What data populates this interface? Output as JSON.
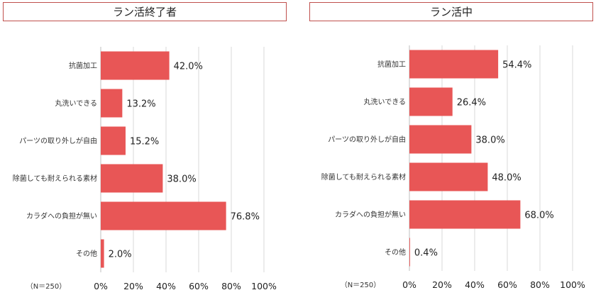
{
  "colors": {
    "bar": "#e85656",
    "grid": "#d9d9d9",
    "axis": "#bfbfbf",
    "title_border": "#c0504d"
  },
  "chart_data": [
    {
      "type": "bar",
      "orientation": "horizontal",
      "title": "ラン活終了者",
      "categories": [
        "抗菌加工",
        "丸洗いできる",
        "パーツの取り外しが自由",
        "除菌しても耐えられる素材",
        "カラダへの負担が無い",
        "その他"
      ],
      "values": [
        42.0,
        13.2,
        15.2,
        38.0,
        76.8,
        2.0
      ],
      "value_labels": [
        "42.0%",
        "13.2%",
        "15.2%",
        "38.0%",
        "76.8%",
        "2.0%"
      ],
      "x_ticks": [
        "0%",
        "20%",
        "40%",
        "60%",
        "80%",
        "100%"
      ],
      "xlim": [
        0,
        100
      ],
      "grid": true,
      "note": "（N＝250）"
    },
    {
      "type": "bar",
      "orientation": "horizontal",
      "title": "ラン活中",
      "categories": [
        "抗菌加工",
        "丸洗いできる",
        "パーツの取り外しが自由",
        "除菌しても耐えられる素材",
        "カラダへの負担が無い",
        "その他"
      ],
      "values": [
        54.4,
        26.4,
        38.0,
        48.0,
        68.0,
        0.4
      ],
      "value_labels": [
        "54.4%",
        "26.4%",
        "38.0%",
        "48.0%",
        "68.0%",
        "0.4%"
      ],
      "x_ticks": [
        "0%",
        "20%",
        "40%",
        "60%",
        "80%",
        "100%"
      ],
      "xlim": [
        0,
        100
      ],
      "grid": true,
      "note": "（N＝250）"
    }
  ]
}
